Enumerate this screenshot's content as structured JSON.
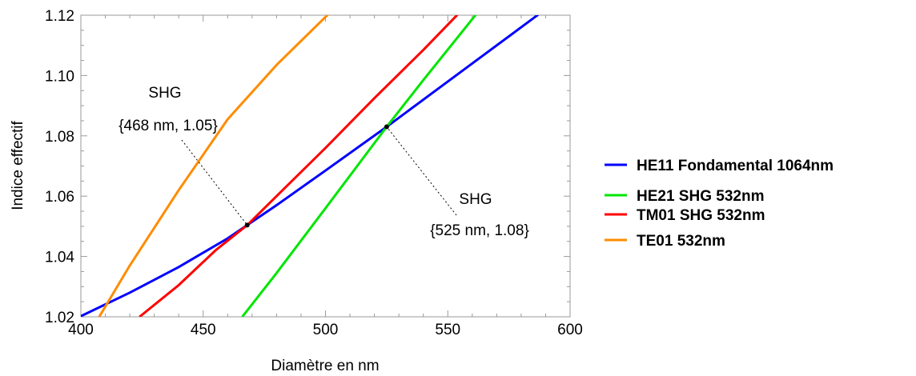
{
  "chart_data": {
    "type": "line",
    "title": "",
    "xlabel": "Diamètre en nm",
    "ylabel": "Indice effectif",
    "xlim": [
      400,
      600
    ],
    "ylim": [
      1.02,
      1.12
    ],
    "x_ticks": [
      "400",
      "450",
      "500",
      "550",
      "600"
    ],
    "y_ticks": [
      "1.02",
      "1.04",
      "1.06",
      "1.08",
      "1.10",
      "1.12"
    ],
    "grid": false,
    "legend_position": "right",
    "series": [
      {
        "name": "HE11 Fondamental 1064nm",
        "color": "#0000ff",
        "points": [
          [
            400,
            1.0202
          ],
          [
            420,
            1.028
          ],
          [
            440,
            1.0365
          ],
          [
            460,
            1.046
          ],
          [
            468,
            1.0504
          ],
          [
            480,
            1.057
          ],
          [
            500,
            1.0685
          ],
          [
            525,
            1.083
          ],
          [
            540,
            1.092
          ],
          [
            560,
            1.104
          ],
          [
            587,
            1.1202
          ]
        ]
      },
      {
        "name": "HE21 SHG 532nm",
        "color": "#00e600",
        "points": [
          [
            466,
            1.02
          ],
          [
            480,
            1.0345
          ],
          [
            500,
            1.056
          ],
          [
            525,
            1.083
          ],
          [
            540,
            1.0985
          ],
          [
            561.5,
            1.1202
          ]
        ]
      },
      {
        "name": "TM01 SHG 532nm",
        "color": "#ff0000",
        "points": [
          [
            424,
            1.02
          ],
          [
            440,
            1.0305
          ],
          [
            455,
            1.042
          ],
          [
            468,
            1.0504
          ],
          [
            480,
            1.06
          ],
          [
            500,
            1.076
          ],
          [
            520,
            1.0925
          ],
          [
            540,
            1.1085
          ],
          [
            554,
            1.1202
          ]
        ]
      },
      {
        "name": "TE01 532nm",
        "color": "#ff8c00",
        "points": [
          [
            407.5,
            1.02
          ],
          [
            420,
            1.037
          ],
          [
            440,
            1.062
          ],
          [
            460,
            1.0855
          ],
          [
            480,
            1.1035
          ],
          [
            501,
            1.1202
          ]
        ]
      }
    ],
    "annotations": [
      {
        "title": "SHG",
        "label": "{468 nm, 1.05}",
        "point": [
          468,
          1.0504
        ]
      },
      {
        "title": "SHG",
        "label": "{525 nm, 1.08}",
        "point": [
          525,
          1.083
        ]
      }
    ]
  }
}
